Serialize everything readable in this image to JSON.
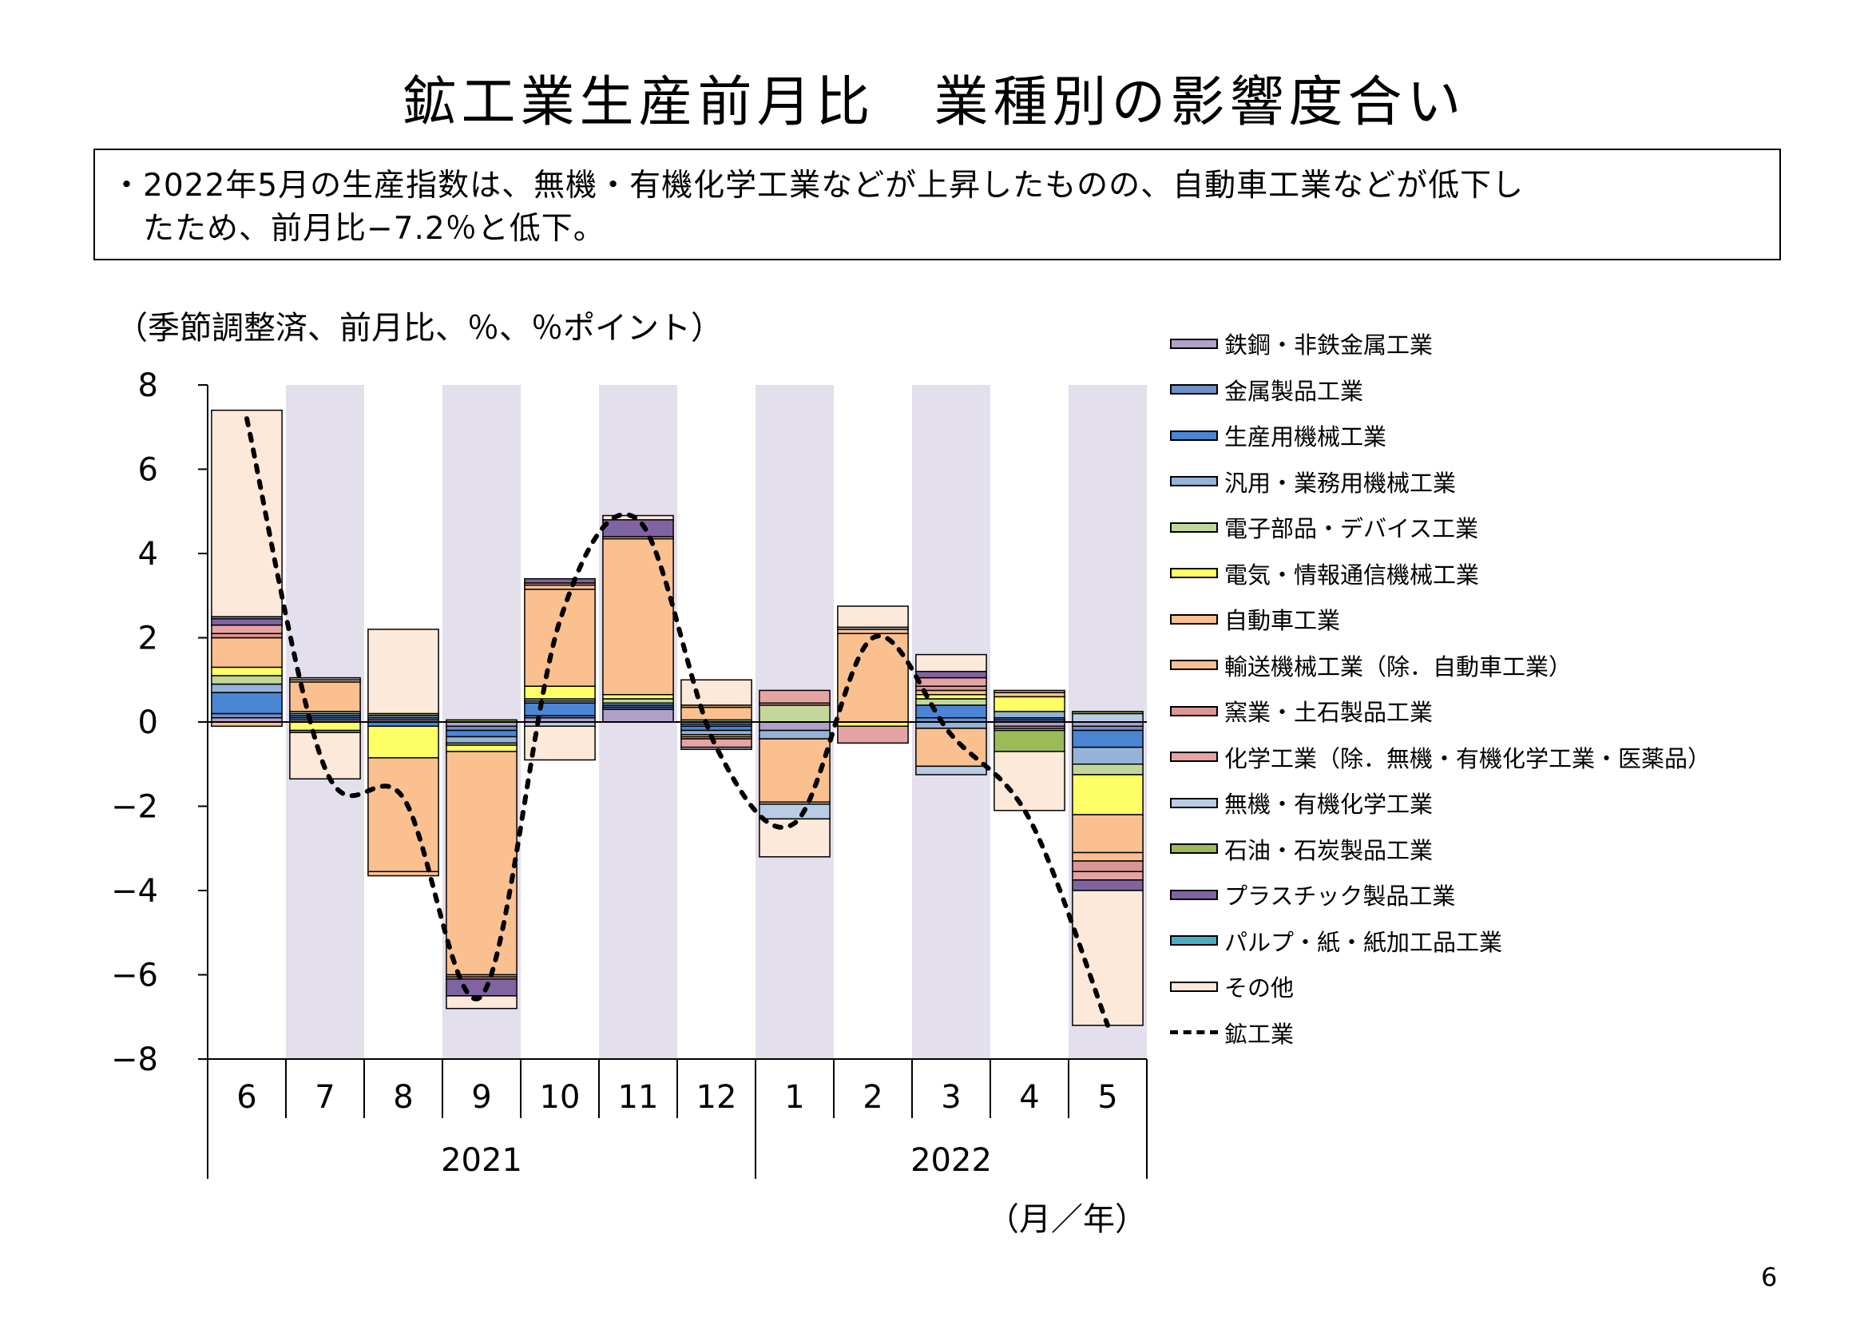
{
  "header": {
    "title": "鉱工業生産前月比　業種別の影響度合い",
    "summary": "・2022年5月の生産指数は、無機・有機化学工業などが上昇したものの、自動車工業などが低下し\n　たため、前月比−7.2％と低下。"
  },
  "chart_data": {
    "type": "bar",
    "subtype": "stacked-bar-with-line",
    "ylabel": "（季節調整済、前月比、％、％ポイント）",
    "xlabel": "（月／年）",
    "ylim": [
      -8,
      8
    ],
    "yticks": [
      "8",
      "6",
      "4",
      "2",
      "0",
      "−2",
      "−4",
      "−6",
      "−8"
    ],
    "categories": [
      "6",
      "7",
      "8",
      "9",
      "10",
      "11",
      "12",
      "1",
      "2",
      "3",
      "4",
      "5"
    ],
    "year_groups": [
      {
        "label": "2021",
        "count": 7
      },
      {
        "label": "2022",
        "count": 5
      }
    ],
    "shaded_columns": [
      1,
      3,
      5,
      7,
      9,
      11
    ],
    "grid": false,
    "legend_position": "right",
    "series": [
      {
        "name": "鉄鋼・非鉄金属工業",
        "color": "#b1a0c7",
        "values": [
          0.1,
          0.05,
          0.05,
          -0.1,
          0.1,
          0.3,
          -0.05,
          -0.2,
          0.0,
          0.0,
          -0.1,
          -0.1
        ]
      },
      {
        "name": "金属製品工業",
        "color": "#6f8fc8",
        "values": [
          0.1,
          0.05,
          0.05,
          -0.1,
          0.05,
          0.05,
          -0.05,
          0.0,
          0.0,
          0.1,
          0.05,
          -0.1
        ]
      },
      {
        "name": "生産用機械工業",
        "color": "#4a86d4",
        "values": [
          0.5,
          0.05,
          -0.1,
          -0.15,
          0.3,
          0.05,
          -0.1,
          0.0,
          0.0,
          0.3,
          0.05,
          -0.4
        ]
      },
      {
        "name": "汎用・業務用機械工業",
        "color": "#95b3d7",
        "values": [
          0.2,
          0.05,
          0.05,
          -0.15,
          0.05,
          0.05,
          -0.1,
          -0.2,
          0.0,
          -0.15,
          0.15,
          -0.4
        ]
      },
      {
        "name": "電子部品・デバイス工業",
        "color": "#c4d79b",
        "values": [
          0.2,
          0.05,
          0.0,
          -0.05,
          0.05,
          0.1,
          0.05,
          0.4,
          0.0,
          0.15,
          0.0,
          -0.25
        ]
      },
      {
        "name": "電気・情報通信機械工業",
        "color": "#ffff66",
        "values": [
          0.2,
          -0.2,
          -0.75,
          -0.15,
          0.3,
          0.1,
          -0.05,
          0.0,
          -0.1,
          0.1,
          0.35,
          -0.95
        ]
      },
      {
        "name": "自動車工業",
        "color": "#fac090",
        "values": [
          0.7,
          0.7,
          -2.7,
          -5.3,
          2.3,
          3.7,
          0.3,
          -1.5,
          2.1,
          -0.9,
          0.1,
          -0.9
        ]
      },
      {
        "name": "輸送機械工業（除．自動車工業）",
        "color": "#fac090",
        "values": [
          -0.1,
          0.05,
          -0.1,
          -0.05,
          0.1,
          0.05,
          0.05,
          -0.05,
          0.1,
          0.1,
          0.05,
          -0.2
        ]
      },
      {
        "name": "窯業・土石製品工業",
        "color": "#da9694",
        "values": [
          0.1,
          0.0,
          0.0,
          -0.05,
          0.0,
          0.0,
          -0.05,
          0.05,
          0.0,
          0.1,
          0.0,
          -0.25
        ]
      },
      {
        "name": "化学工業（除．無機・有機化学工業・医薬品）",
        "color": "#e6a3a3",
        "values": [
          0.2,
          0.0,
          0.0,
          0.0,
          0.05,
          0.0,
          -0.2,
          0.3,
          -0.4,
          0.2,
          -0.05,
          -0.2
        ]
      },
      {
        "name": "無機・有機化学工業",
        "color": "#b8cce4",
        "values": [
          0.0,
          0.05,
          0.0,
          0.0,
          -0.1,
          0.0,
          -0.05,
          -0.35,
          0.05,
          -0.2,
          -0.05,
          0.2
        ]
      },
      {
        "name": "石油・石炭製品工業",
        "color": "#9bbb59",
        "values": [
          0.0,
          -0.05,
          0.05,
          0.05,
          0.0,
          0.0,
          0.0,
          0.0,
          0.0,
          0.0,
          -0.5,
          0.05
        ]
      },
      {
        "name": "プラスチック製品工業",
        "color": "#8064a2",
        "values": [
          0.15,
          0.0,
          0.0,
          -0.4,
          0.1,
          0.4,
          0.0,
          0.0,
          0.0,
          0.15,
          0.0,
          -0.25
        ]
      },
      {
        "name": "パルプ・紙・紙加工品工業",
        "color": "#4bacc6",
        "values": [
          0.05,
          0.0,
          0.0,
          0.0,
          0.0,
          0.0,
          0.0,
          0.0,
          0.0,
          0.0,
          0.0,
          0.0
        ]
      },
      {
        "name": "その他",
        "color": "#fde9d9",
        "values": [
          4.9,
          -1.1,
          2.0,
          -0.3,
          -0.8,
          0.1,
          0.6,
          -0.9,
          0.5,
          0.4,
          -1.4,
          -3.2
        ]
      }
    ],
    "line_series": {
      "name": "鉱工業",
      "style": "dashed",
      "color": "#000000",
      "values": [
        7.2,
        -1.1,
        -1.8,
        -6.5,
        2.4,
        4.8,
        -0.6,
        -2.4,
        2.0,
        -0.3,
        -2.3,
        -7.2
      ]
    }
  },
  "page": {
    "unit_note": "（季節調整済、前月比、％、％ポイント）",
    "axis_period": "（月／年）",
    "number": "6"
  }
}
